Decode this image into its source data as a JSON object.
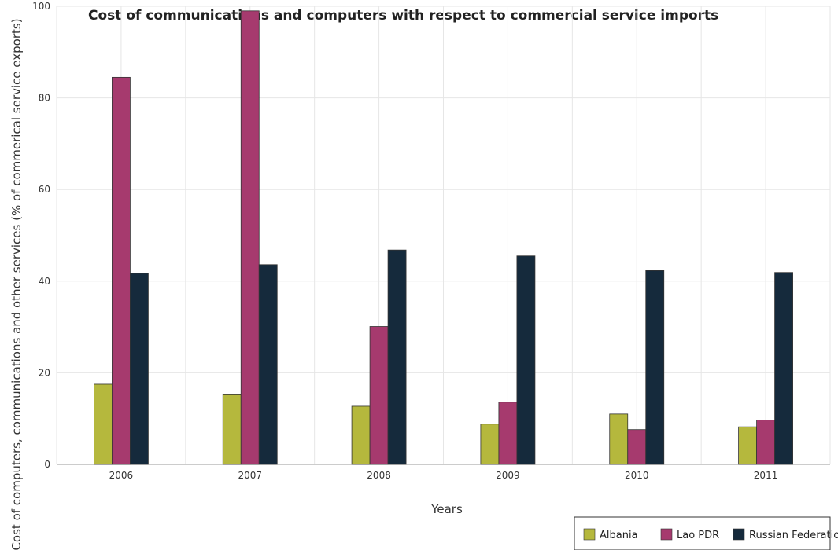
{
  "chart_data": {
    "type": "bar",
    "title": "Cost of communications and computers with respect to commercial service imports",
    "xlabel": "Years",
    "ylabel": "Cost of computers, communications and other services (% of commerical service exports)",
    "categories": [
      "2006",
      "2007",
      "2008",
      "2009",
      "2010",
      "2011"
    ],
    "ylim": [
      0,
      100
    ],
    "yticks": [
      0,
      20,
      40,
      60,
      80,
      100
    ],
    "grid": true,
    "legend_position": "bottom-right",
    "series": [
      {
        "name": "Albania",
        "color": "#b5b83d",
        "values": [
          17.5,
          15.2,
          12.7,
          8.8,
          11.0,
          8.2
        ]
      },
      {
        "name": "Lao PDR",
        "color": "#a63a6e",
        "values": [
          84.5,
          99.0,
          30.1,
          13.6,
          7.6,
          9.7
        ]
      },
      {
        "name": "Russian Federation",
        "color": "#152a3c",
        "values": [
          41.7,
          43.6,
          46.8,
          45.5,
          42.3,
          41.9
        ]
      }
    ]
  }
}
